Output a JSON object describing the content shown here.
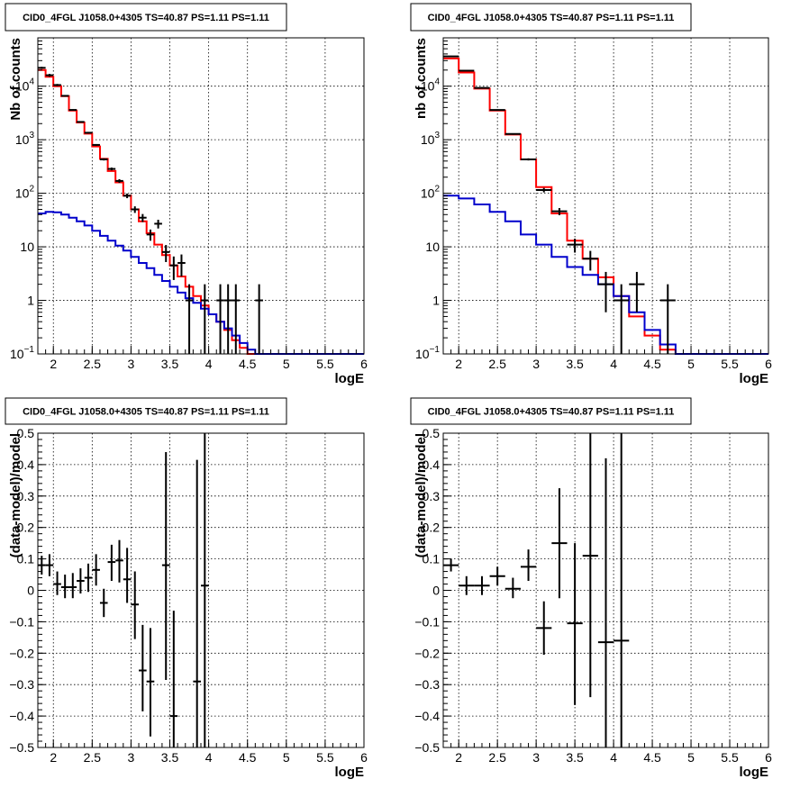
{
  "chart_data": [
    {
      "type": "line",
      "title": "CID0_4FGL J1058.0+4305 TS=40.87 PS=1.11 PS=1.11",
      "xlabel": "logE",
      "ylabel": "Nb of counts",
      "xlim": [
        1.8,
        6.0
      ],
      "ylim": [
        0.1,
        80000
      ],
      "log_y": true,
      "grid": true,
      "x_ticks": [
        "2",
        "2.5",
        "3",
        "3.5",
        "4",
        "4.5",
        "5",
        "5.5",
        "6"
      ],
      "y_ticks": [
        {
          "value": 0.1,
          "base": "10",
          "exp": "−1"
        },
        {
          "value": 1,
          "text": "1"
        },
        {
          "value": 10,
          "text": "10"
        },
        {
          "value": 100,
          "base": "10",
          "exp": "2"
        },
        {
          "value": 1000,
          "base": "10",
          "exp": "3"
        },
        {
          "value": 10000,
          "base": "10",
          "exp": "4"
        }
      ],
      "bin_edges": [
        1.8,
        1.9,
        2.0,
        2.1,
        2.2,
        2.3,
        2.4,
        2.5,
        2.6,
        2.7,
        2.8,
        2.9,
        3.0,
        3.1,
        3.2,
        3.3,
        3.4,
        3.5,
        3.6,
        3.7,
        3.8,
        3.9,
        4.0,
        4.1,
        4.2,
        4.3,
        4.4,
        4.5,
        4.6,
        4.7,
        4.8,
        4.9,
        5.0,
        5.1,
        5.2,
        5.3,
        5.4,
        5.5,
        5.6,
        5.7,
        5.8,
        5.9,
        6.0
      ],
      "series": [
        {
          "color": "#ff0000",
          "values": [
            20000,
            15000,
            10000,
            6500,
            3500,
            2100,
            1300,
            750,
            440,
            260,
            160,
            90,
            50,
            30,
            18,
            11,
            7,
            4.5,
            2.8,
            1.8,
            1.2,
            0.8,
            0.55,
            0.4,
            0.28,
            0.18,
            0.13,
            0.1,
            0.1,
            0.1,
            0.1,
            0.1,
            0.1,
            0.1,
            0.1,
            0.1,
            0.1,
            0.1,
            0.1,
            0.1,
            0.1,
            0.1
          ]
        },
        {
          "color": "#0000cc",
          "values": [
            42,
            45,
            44,
            40,
            35,
            30,
            25,
            20,
            16,
            13,
            10.5,
            8.5,
            6.5,
            5,
            4,
            3,
            2.3,
            1.8,
            1.4,
            1.1,
            0.9,
            0.7,
            0.55,
            0.4,
            0.3,
            0.22,
            0.16,
            0.12,
            0.1,
            0.1,
            0.1,
            0.1,
            0.1,
            0.1,
            0.1,
            0.1,
            0.1,
            0.1,
            0.1,
            0.1,
            0.1,
            0.1
          ]
        }
      ],
      "points": [
        {
          "x": 1.85,
          "y": 22000,
          "xerr": 0.05,
          "ylo": 21000,
          "yhi": 23000
        },
        {
          "x": 1.95,
          "y": 16000,
          "xerr": 0.05,
          "ylo": 15000,
          "yhi": 17000
        },
        {
          "x": 2.05,
          "y": 10500,
          "xerr": 0.05,
          "ylo": 10000,
          "yhi": 11000
        },
        {
          "x": 2.15,
          "y": 6600,
          "xerr": 0.05,
          "ylo": 6400,
          "yhi": 6800
        },
        {
          "x": 2.25,
          "y": 3600,
          "xerr": 0.05,
          "ylo": 3500,
          "yhi": 3700
        },
        {
          "x": 2.35,
          "y": 2150,
          "xerr": 0.05,
          "ylo": 2100,
          "yhi": 2200
        },
        {
          "x": 2.45,
          "y": 1350,
          "xerr": 0.05,
          "ylo": 1300,
          "yhi": 1400
        },
        {
          "x": 2.55,
          "y": 800,
          "xerr": 0.05,
          "ylo": 770,
          "yhi": 830
        },
        {
          "x": 2.65,
          "y": 430,
          "xerr": 0.05,
          "ylo": 410,
          "yhi": 450
        },
        {
          "x": 2.75,
          "y": 285,
          "xerr": 0.05,
          "ylo": 268,
          "yhi": 302
        },
        {
          "x": 2.85,
          "y": 170,
          "xerr": 0.05,
          "ylo": 157,
          "yhi": 183
        },
        {
          "x": 2.95,
          "y": 90,
          "xerr": 0.05,
          "ylo": 81,
          "yhi": 99
        },
        {
          "x": 3.05,
          "y": 50,
          "xerr": 0.05,
          "ylo": 43,
          "yhi": 57
        },
        {
          "x": 3.15,
          "y": 35,
          "xerr": 0.05,
          "ylo": 29,
          "yhi": 41
        },
        {
          "x": 3.25,
          "y": 17,
          "xerr": 0.05,
          "ylo": 13,
          "yhi": 21
        },
        {
          "x": 3.35,
          "y": 27,
          "xerr": 0.05,
          "ylo": 22,
          "yhi": 32
        },
        {
          "x": 3.45,
          "y": 8,
          "xerr": 0.05,
          "ylo": 5.2,
          "yhi": 10.8
        },
        {
          "x": 3.55,
          "y": 4.5,
          "xerr": 0.05,
          "ylo": 2.4,
          "yhi": 6.6
        },
        {
          "x": 3.65,
          "y": 5,
          "xerr": 0.05,
          "ylo": 2.8,
          "yhi": 7.2
        },
        {
          "x": 3.75,
          "y": 1,
          "xerr": 0.05,
          "ylo": 0.1,
          "yhi": 2.0
        },
        {
          "x": 3.95,
          "y": 1,
          "xerr": 0.05,
          "ylo": 0.1,
          "yhi": 2.0
        },
        {
          "x": 4.15,
          "y": 1,
          "xerr": 0.05,
          "ylo": 0.1,
          "yhi": 2.0
        },
        {
          "x": 4.25,
          "y": 1,
          "xerr": 0.05,
          "ylo": 0.1,
          "yhi": 2.0
        },
        {
          "x": 4.35,
          "y": 1,
          "xerr": 0.05,
          "ylo": 0.1,
          "yhi": 2.0
        },
        {
          "x": 4.65,
          "y": 1,
          "xerr": 0.05,
          "ylo": 0.1,
          "yhi": 2.0
        }
      ]
    },
    {
      "type": "line",
      "title": "CID0_4FGL J1058.0+4305 TS=40.87 PS=1.11 PS=1.11",
      "xlabel": "logE",
      "ylabel": "nb of counts",
      "xlim": [
        1.8,
        6.0
      ],
      "ylim": [
        0.1,
        80000
      ],
      "log_y": true,
      "grid": true,
      "x_ticks": [
        "2",
        "2.5",
        "3",
        "3.5",
        "4",
        "4.5",
        "5",
        "5.5",
        "6"
      ],
      "y_ticks": [
        {
          "value": 0.1,
          "base": "10",
          "exp": "−1"
        },
        {
          "value": 1,
          "text": "1"
        },
        {
          "value": 10,
          "text": "10"
        },
        {
          "value": 100,
          "base": "10",
          "exp": "2"
        },
        {
          "value": 1000,
          "base": "10",
          "exp": "3"
        },
        {
          "value": 10000,
          "base": "10",
          "exp": "4"
        }
      ],
      "bin_edges": [
        1.8,
        2.0,
        2.2,
        2.4,
        2.6,
        2.8,
        3.0,
        3.2,
        3.4,
        3.6,
        3.8,
        4.0,
        4.2,
        4.4,
        4.6,
        4.8,
        5.0,
        5.2,
        5.4,
        5.6,
        5.8,
        6.0
      ],
      "series": [
        {
          "color": "#ff0000",
          "values": [
            33000,
            18000,
            9000,
            3500,
            1250,
            430,
            130,
            42,
            13,
            6,
            2.7,
            1.2,
            0.5,
            0.22,
            0.12,
            0.1,
            0.1,
            0.1,
            0.1,
            0.1,
            0.1
          ]
        },
        {
          "color": "#0000cc",
          "values": [
            90,
            80,
            62,
            45,
            30,
            17,
            11,
            6.5,
            4.2,
            3.0,
            2.0,
            1.2,
            0.6,
            0.28,
            0.15,
            0.1,
            0.1,
            0.1,
            0.1,
            0.1,
            0.1
          ]
        }
      ],
      "points": [
        {
          "x": 1.9,
          "y": 36000,
          "xerr": 0.1,
          "ylo": 35000,
          "yhi": 37000
        },
        {
          "x": 2.1,
          "y": 19500,
          "xerr": 0.1,
          "ylo": 19000,
          "yhi": 20000
        },
        {
          "x": 2.3,
          "y": 9300,
          "xerr": 0.1,
          "ylo": 9000,
          "yhi": 9600
        },
        {
          "x": 2.5,
          "y": 3600,
          "xerr": 0.1,
          "ylo": 3500,
          "yhi": 3700
        },
        {
          "x": 2.7,
          "y": 1280,
          "xerr": 0.1,
          "ylo": 1240,
          "yhi": 1320
        },
        {
          "x": 2.9,
          "y": 430,
          "xerr": 0.1,
          "ylo": 410,
          "yhi": 450
        },
        {
          "x": 3.1,
          "y": 115,
          "xerr": 0.1,
          "ylo": 104,
          "yhi": 126
        },
        {
          "x": 3.3,
          "y": 46,
          "xerr": 0.1,
          "ylo": 39,
          "yhi": 53
        },
        {
          "x": 3.5,
          "y": 11,
          "xerr": 0.1,
          "ylo": 7.8,
          "yhi": 14.2
        },
        {
          "x": 3.7,
          "y": 6,
          "xerr": 0.1,
          "ylo": 3.6,
          "yhi": 8.4
        },
        {
          "x": 3.9,
          "y": 2,
          "xerr": 0.1,
          "ylo": 0.6,
          "yhi": 3.4
        },
        {
          "x": 4.1,
          "y": 1,
          "xerr": 0.1,
          "ylo": 0.1,
          "yhi": 2.0
        },
        {
          "x": 4.3,
          "y": 2,
          "xerr": 0.1,
          "ylo": 0.6,
          "yhi": 3.4
        },
        {
          "x": 4.7,
          "y": 1,
          "xerr": 0.1,
          "ylo": 0.1,
          "yhi": 2.0
        }
      ]
    },
    {
      "type": "scatter",
      "title": "CID0_4FGL J1058.0+4305 TS=40.87 PS=1.11 PS=1.11",
      "xlabel": "logE",
      "ylabel": "(data-model)/model",
      "xlim": [
        1.8,
        6.0
      ],
      "ylim": [
        -0.5,
        0.5
      ],
      "log_y": false,
      "grid": true,
      "x_ticks": [
        "2",
        "2.5",
        "3",
        "3.5",
        "4",
        "4.5",
        "5",
        "5.5",
        "6"
      ],
      "y_ticks": [
        {
          "value": -0.5,
          "text": "−0.5"
        },
        {
          "value": -0.4,
          "text": "−0.4"
        },
        {
          "value": -0.3,
          "text": "−0.3"
        },
        {
          "value": -0.2,
          "text": "−0.2"
        },
        {
          "value": -0.1,
          "text": "−0.1"
        },
        {
          "value": 0,
          "text": "0"
        },
        {
          "value": 0.1,
          "text": "0.1"
        },
        {
          "value": 0.2,
          "text": "0.2"
        },
        {
          "value": 0.3,
          "text": "0.3"
        },
        {
          "value": 0.4,
          "text": "0.4"
        },
        {
          "value": 0.5,
          "text": "0.5"
        }
      ],
      "points": [
        {
          "x": 1.85,
          "y": 0.08,
          "xerr": 0.05,
          "ylo": 0.05,
          "yhi": 0.11
        },
        {
          "x": 1.95,
          "y": 0.08,
          "xerr": 0.05,
          "ylo": 0.045,
          "yhi": 0.115
        },
        {
          "x": 2.05,
          "y": 0.02,
          "xerr": 0.05,
          "ylo": -0.015,
          "yhi": 0.06
        },
        {
          "x": 2.15,
          "y": 0.01,
          "xerr": 0.05,
          "ylo": -0.025,
          "yhi": 0.05
        },
        {
          "x": 2.25,
          "y": 0.01,
          "xerr": 0.05,
          "ylo": -0.025,
          "yhi": 0.055
        },
        {
          "x": 2.35,
          "y": 0.03,
          "xerr": 0.05,
          "ylo": -0.01,
          "yhi": 0.07
        },
        {
          "x": 2.45,
          "y": 0.04,
          "xerr": 0.05,
          "ylo": -0.005,
          "yhi": 0.085
        },
        {
          "x": 2.55,
          "y": 0.065,
          "xerr": 0.05,
          "ylo": 0.015,
          "yhi": 0.115
        },
        {
          "x": 2.65,
          "y": -0.04,
          "xerr": 0.05,
          "ylo": -0.085,
          "yhi": 0.005
        },
        {
          "x": 2.75,
          "y": 0.09,
          "xerr": 0.05,
          "ylo": 0.03,
          "yhi": 0.145
        },
        {
          "x": 2.85,
          "y": 0.095,
          "xerr": 0.05,
          "ylo": 0.025,
          "yhi": 0.16
        },
        {
          "x": 2.95,
          "y": 0.035,
          "xerr": 0.05,
          "ylo": -0.04,
          "yhi": 0.135
        },
        {
          "x": 3.05,
          "y": -0.045,
          "xerr": 0.05,
          "ylo": -0.155,
          "yhi": 0.06
        },
        {
          "x": 3.15,
          "y": -0.255,
          "xerr": 0.05,
          "ylo": -0.385,
          "yhi": -0.11
        },
        {
          "x": 3.25,
          "y": -0.29,
          "xerr": 0.05,
          "ylo": -0.465,
          "yhi": -0.12
        },
        {
          "x": 3.45,
          "y": 0.08,
          "xerr": 0.05,
          "ylo": -0.285,
          "yhi": 0.44
        },
        {
          "x": 3.55,
          "y": -0.4,
          "xerr": 0.05,
          "ylo": -0.5,
          "yhi": -0.065
        },
        {
          "x": 3.85,
          "y": -0.29,
          "xerr": 0.05,
          "ylo": -0.5,
          "yhi": 0.415
        },
        {
          "x": 3.95,
          "y": 0.015,
          "xerr": 0.05,
          "ylo": -0.5,
          "yhi": 0.5
        }
      ]
    },
    {
      "type": "scatter",
      "title": "CID0_4FGL J1058.0+4305 TS=40.87 PS=1.11 PS=1.11",
      "xlabel": "logE",
      "ylabel": "(data-model)/model",
      "xlim": [
        1.8,
        6.0
      ],
      "ylim": [
        -0.5,
        0.5
      ],
      "log_y": false,
      "grid": true,
      "x_ticks": [
        "2",
        "2.5",
        "3",
        "3.5",
        "4",
        "4.5",
        "5",
        "5.5",
        "6"
      ],
      "y_ticks": [
        {
          "value": -0.5,
          "text": "−0.5"
        },
        {
          "value": -0.4,
          "text": "−0.4"
        },
        {
          "value": -0.3,
          "text": "−0.3"
        },
        {
          "value": -0.2,
          "text": "−0.2"
        },
        {
          "value": -0.1,
          "text": "−0.1"
        },
        {
          "value": 0,
          "text": "0"
        },
        {
          "value": 0.1,
          "text": "0.1"
        },
        {
          "value": 0.2,
          "text": "0.2"
        },
        {
          "value": 0.3,
          "text": "0.3"
        },
        {
          "value": 0.4,
          "text": "0.4"
        },
        {
          "value": 0.5,
          "text": "0.5"
        }
      ],
      "points": [
        {
          "x": 1.9,
          "y": 0.08,
          "xerr": 0.1,
          "ylo": 0.06,
          "yhi": 0.1
        },
        {
          "x": 2.1,
          "y": 0.015,
          "xerr": 0.1,
          "ylo": -0.015,
          "yhi": 0.045
        },
        {
          "x": 2.3,
          "y": 0.015,
          "xerr": 0.1,
          "ylo": -0.015,
          "yhi": 0.045
        },
        {
          "x": 2.5,
          "y": 0.045,
          "xerr": 0.1,
          "ylo": 0.015,
          "yhi": 0.075
        },
        {
          "x": 2.7,
          "y": 0.005,
          "xerr": 0.1,
          "ylo": -0.025,
          "yhi": 0.04
        },
        {
          "x": 2.9,
          "y": 0.075,
          "xerr": 0.1,
          "ylo": 0.03,
          "yhi": 0.13
        },
        {
          "x": 3.1,
          "y": -0.12,
          "xerr": 0.1,
          "ylo": -0.205,
          "yhi": -0.035
        },
        {
          "x": 3.3,
          "y": 0.15,
          "xerr": 0.1,
          "ylo": -0.025,
          "yhi": 0.325
        },
        {
          "x": 3.5,
          "y": -0.105,
          "xerr": 0.1,
          "ylo": -0.365,
          "yhi": 0.15
        },
        {
          "x": 3.7,
          "y": 0.11,
          "xerr": 0.1,
          "ylo": -0.34,
          "yhi": 0.5
        },
        {
          "x": 3.9,
          "y": -0.165,
          "xerr": 0.1,
          "ylo": -0.5,
          "yhi": 0.42
        },
        {
          "x": 4.1,
          "y": -0.16,
          "xerr": 0.1,
          "ylo": -0.5,
          "yhi": 0.5
        }
      ]
    }
  ]
}
